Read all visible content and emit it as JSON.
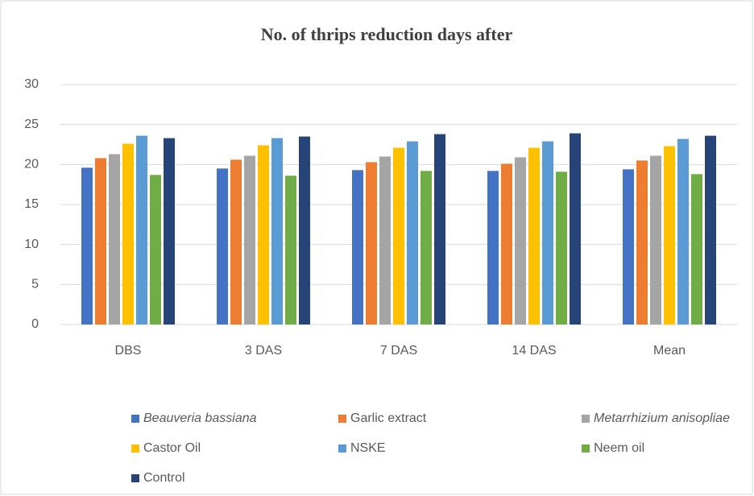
{
  "chart_data": {
    "type": "bar",
    "title": "No. of thrips reduction days after",
    "categories": [
      "DBS",
      "3 DAS",
      "7 DAS",
      "14 DAS",
      "Mean"
    ],
    "series": [
      {
        "name": "Beauveria bassiana",
        "color": "#4472c4",
        "italic": true,
        "values": [
          19.6,
          19.5,
          19.3,
          19.2,
          19.4
        ]
      },
      {
        "name": "Garlic extract",
        "color": "#ed7d31",
        "values": [
          20.8,
          20.6,
          20.3,
          20.1,
          20.5
        ]
      },
      {
        "name": "Metarrhizium anisopliae",
        "color": "#a5a5a5",
        "italic": true,
        "values": [
          21.3,
          21.1,
          21.0,
          20.9,
          21.1
        ]
      },
      {
        "name": "Castor Oil",
        "color": "#ffc000",
        "values": [
          22.6,
          22.4,
          22.1,
          22.1,
          22.3
        ]
      },
      {
        "name": "NSKE",
        "color": "#5b9bd5",
        "values": [
          23.6,
          23.3,
          22.9,
          22.9,
          23.2
        ]
      },
      {
        "name": "Neem oil",
        "color": "#70ad47",
        "values": [
          18.7,
          18.6,
          19.2,
          19.1,
          18.8
        ]
      },
      {
        "name": "Control",
        "color": "#264478",
        "values": [
          23.3,
          23.5,
          23.8,
          23.9,
          23.6
        ]
      }
    ],
    "ylim": [
      0,
      30
    ],
    "yticks": [
      0,
      5,
      10,
      15,
      20,
      25,
      30
    ],
    "grid": true,
    "legend": "bottom"
  }
}
